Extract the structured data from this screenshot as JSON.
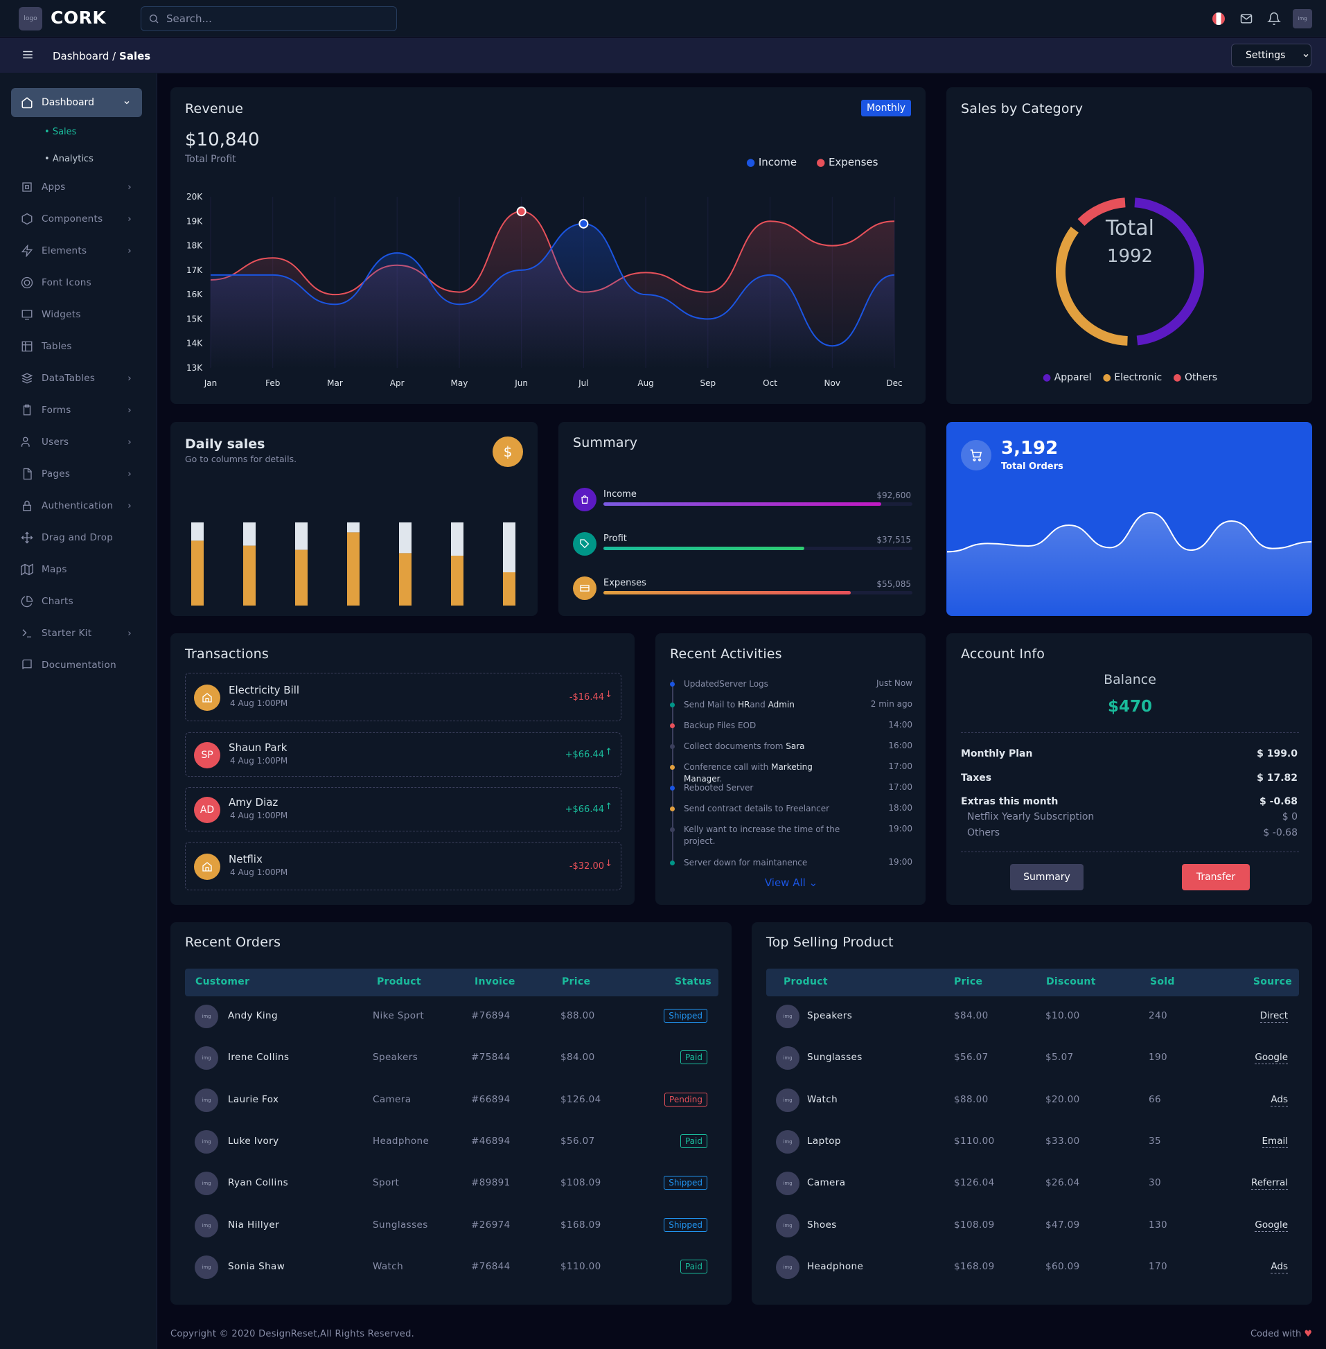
{
  "header": {
    "logo_text": "logo",
    "brand": "CORK",
    "search_placeholder": "Search...",
    "avatar": "img"
  },
  "subheader": {
    "crumb_root": "Dashboard",
    "crumb_sep": "/",
    "crumb_current": "Sales",
    "settings": "Settings"
  },
  "sidebar": {
    "active": "Dashboard",
    "sub": [
      "Sales",
      "Analytics"
    ],
    "items": [
      {
        "label": "Apps",
        "chev": true
      },
      {
        "label": "Components",
        "chev": true
      },
      {
        "label": "Elements",
        "chev": true
      },
      {
        "label": "Font Icons",
        "chev": false
      },
      {
        "label": "Widgets",
        "chev": false
      },
      {
        "label": "Tables",
        "chev": false
      },
      {
        "label": "DataTables",
        "chev": true
      },
      {
        "label": "Forms",
        "chev": true
      },
      {
        "label": "Users",
        "chev": true
      },
      {
        "label": "Pages",
        "chev": true
      },
      {
        "label": "Authentication",
        "chev": true
      },
      {
        "label": "Drag and Drop",
        "chev": false
      },
      {
        "label": "Maps",
        "chev": false
      },
      {
        "label": "Charts",
        "chev": false
      },
      {
        "label": "Starter Kit",
        "chev": true
      },
      {
        "label": "Documentation",
        "chev": false
      }
    ]
  },
  "revenue": {
    "title": "Revenue",
    "period": "Monthly",
    "amount": "$10,840",
    "amount_label": "Total Profit"
  },
  "chart_data": [
    {
      "type": "area",
      "title": "Revenue",
      "categories": [
        "Jan",
        "Feb",
        "Mar",
        "Apr",
        "May",
        "Jun",
        "Jul",
        "Aug",
        "Sep",
        "Oct",
        "Nov",
        "Dec"
      ],
      "series": [
        {
          "name": "Income",
          "color": "#1b55e2",
          "values": [
            16.8,
            16.8,
            15.6,
            17.7,
            15.6,
            17.0,
            18.9,
            16.0,
            15.0,
            16.8,
            13.9,
            16.8
          ]
        },
        {
          "name": "Expenses",
          "color": "#e7515a",
          "values": [
            16.6,
            17.5,
            16.0,
            17.2,
            16.1,
            19.4,
            16.1,
            16.9,
            16.1,
            19.0,
            18.0,
            19.0
          ]
        }
      ],
      "y_ticks": [
        "20K",
        "19K",
        "18K",
        "17K",
        "16K",
        "15K",
        "14K",
        "13K"
      ],
      "ylim": [
        13,
        20
      ],
      "legend": "top-right"
    },
    {
      "type": "pie",
      "title": "Sales by Category",
      "categories": [
        "Apparel",
        "Electronic",
        "Others"
      ],
      "values": [
        985,
        737,
        270
      ],
      "colors": [
        "#5c1ac3",
        "#e2a03f",
        "#e7515a"
      ],
      "center_label": "Total",
      "center_value": "1992"
    },
    {
      "type": "bar",
      "title": "Daily sales",
      "stacked": true,
      "series": [
        {
          "name": "filled",
          "color": "#e2a03f",
          "values": [
            78,
            72,
            67,
            88,
            63,
            60,
            40
          ]
        },
        {
          "name": "remaining",
          "color": "#e0e6ed",
          "values": [
            22,
            28,
            33,
            12,
            37,
            40,
            60
          ]
        }
      ]
    },
    {
      "type": "area",
      "title": "Total Orders",
      "values": [
        28,
        38,
        35,
        60,
        33,
        75,
        30,
        65,
        32,
        40
      ]
    }
  ],
  "daily_sales": {
    "title": "Daily sales",
    "subtitle": "Go to columns for details.",
    "icon": "$"
  },
  "summary": {
    "title": "Summary",
    "items": [
      {
        "label": "Income",
        "value": "$92,600",
        "pct": 90,
        "grad": "linear-gradient(90deg,#7b5be2,#c11ac3)",
        "icon_bg": "#5c1ac3"
      },
      {
        "label": "Profit",
        "value": "$37,515",
        "pct": 65,
        "grad": "linear-gradient(90deg,#1abc9c,#2ecc71)",
        "icon_bg": "#009688"
      },
      {
        "label": "Expenses",
        "value": "$55,085",
        "pct": 80,
        "grad": "linear-gradient(90deg,#e2a03f,#e7515a)",
        "icon_bg": "#e2a03f"
      }
    ]
  },
  "orders": {
    "value": "3,192",
    "label": "Total Orders"
  },
  "transactions": {
    "title": "Transactions",
    "items": [
      {
        "initials": "",
        "name": "Electricity Bill",
        "date": "4 Aug 1:00PM",
        "amount": "-$16.44",
        "dir": "down",
        "bg": "#e2a03f",
        "color": "#e7515a"
      },
      {
        "initials": "SP",
        "name": "Shaun Park",
        "date": "4 Aug 1:00PM",
        "amount": "+$66.44",
        "dir": "up",
        "bg": "#e7515a",
        "color": "#1abc9c"
      },
      {
        "initials": "AD",
        "name": "Amy Diaz",
        "date": "4 Aug 1:00PM",
        "amount": "+$66.44",
        "dir": "up",
        "bg": "#e7515a",
        "color": "#1abc9c"
      },
      {
        "initials": "",
        "name": "Netflix",
        "date": "4 Aug 1:00PM",
        "amount": "-$32.00",
        "dir": "down",
        "bg": "#e2a03f",
        "color": "#e7515a"
      }
    ]
  },
  "activities": {
    "title": "Recent Activities",
    "view_all": "View All",
    "items": [
      {
        "text": "UpdatedServer Logs",
        "time": "Just Now",
        "color": "#1b55e2"
      },
      {
        "text": "Send Mail to |HR|and |Admin",
        "time": "2 min ago",
        "color": "#009688"
      },
      {
        "text": "Backup Files EOD",
        "time": "14:00",
        "color": "#e7515a"
      },
      {
        "text": "Collect documents from |Sara",
        "time": "16:00",
        "color": "#3b3f5c"
      },
      {
        "text": "Conference call with |Marketing Manager|.",
        "time": "17:00",
        "color": "#e2a03f"
      },
      {
        "text": "Rebooted Server",
        "time": "17:00",
        "color": "#1b55e2"
      },
      {
        "text": "Send contract details to Freelancer",
        "time": "18:00",
        "color": "#e2a03f"
      },
      {
        "text": "Kelly want to increase the time of the project.",
        "time": "19:00",
        "color": "#3b3f5c"
      },
      {
        "text": "Server down for maintanence",
        "time": "19:00",
        "color": "#009688"
      }
    ]
  },
  "account": {
    "title": "Account Info",
    "balance_label": "Balance",
    "balance": "$470",
    "rows": [
      {
        "label": "Monthly Plan",
        "value": "$ 199.0",
        "bold": true
      },
      {
        "label": "Taxes",
        "value": "$ 17.82",
        "bold": true
      },
      {
        "label": "Extras this month",
        "value": "$ -0.68",
        "bold": true
      },
      {
        "label": "Netflix Yearly Subscription",
        "value": "$ 0",
        "bold": false
      },
      {
        "label": "Others",
        "value": "$ -0.68",
        "bold": false
      }
    ],
    "btn_summary": "Summary",
    "btn_transfer": "Transfer"
  },
  "recent_orders": {
    "title": "Recent Orders",
    "headers": [
      "Customer",
      "Product",
      "Invoice",
      "Price",
      "Status"
    ],
    "rows": [
      {
        "customer": "Andy King",
        "product": "Nike Sport",
        "invoice": "#76894",
        "price": "$88.00",
        "status": "Shipped"
      },
      {
        "customer": "Irene Collins",
        "product": "Speakers",
        "invoice": "#75844",
        "price": "$84.00",
        "status": "Paid"
      },
      {
        "customer": "Laurie Fox",
        "product": "Camera",
        "invoice": "#66894",
        "price": "$126.04",
        "status": "Pending"
      },
      {
        "customer": "Luke Ivory",
        "product": "Headphone",
        "invoice": "#46894",
        "price": "$56.07",
        "status": "Paid"
      },
      {
        "customer": "Ryan Collins",
        "product": "Sport",
        "invoice": "#89891",
        "price": "$108.09",
        "status": "Shipped"
      },
      {
        "customer": "Nia Hillyer",
        "product": "Sunglasses",
        "invoice": "#26974",
        "price": "$168.09",
        "status": "Shipped"
      },
      {
        "customer": "Sonia Shaw",
        "product": "Watch",
        "invoice": "#76844",
        "price": "$110.00",
        "status": "Paid"
      }
    ]
  },
  "top_selling": {
    "title": "Top Selling Product",
    "headers": [
      "Product",
      "Price",
      "Discount",
      "Sold",
      "Source"
    ],
    "rows": [
      {
        "product": "Speakers",
        "price": "$84.00",
        "discount": "$10.00",
        "sold": "240",
        "source": "Direct"
      },
      {
        "product": "Sunglasses",
        "price": "$56.07",
        "discount": "$5.07",
        "sold": "190",
        "source": "Google"
      },
      {
        "product": "Watch",
        "price": "$88.00",
        "discount": "$20.00",
        "sold": "66",
        "source": "Ads"
      },
      {
        "product": "Laptop",
        "price": "$110.00",
        "discount": "$33.00",
        "sold": "35",
        "source": "Email"
      },
      {
        "product": "Camera",
        "price": "$126.04",
        "discount": "$26.04",
        "sold": "30",
        "source": "Referral"
      },
      {
        "product": "Shoes",
        "price": "$108.09",
        "discount": "$47.09",
        "sold": "130",
        "source": "Google"
      },
      {
        "product": "Headphone",
        "price": "$168.09",
        "discount": "$60.09",
        "sold": "170",
        "source": "Ads"
      }
    ]
  },
  "footer": {
    "copyright": "Copyright © 2020 DesignReset,All Rights Reserved.",
    "coded": "Coded with"
  },
  "status_colors": {
    "Shipped": "#2196f3",
    "Paid": "#1abc9c",
    "Pending": "#e7515a"
  }
}
